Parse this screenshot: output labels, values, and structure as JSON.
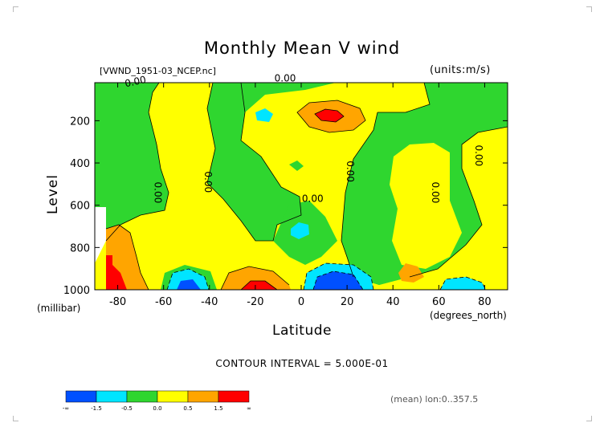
{
  "title": "Monthly Mean V wind",
  "file_label": "[VWND_1951-03_NCEP.nc]",
  "units_label": "(units:m/s)",
  "axis": {
    "ylabel": "Level",
    "yunit": "(millibar)",
    "xlabel": "Latitude",
    "xunit": "(degrees_north)"
  },
  "contour_interval": "CONTOUR INTERVAL = 5.000E-01",
  "stats_label": "(mean) lon:0..357.5",
  "colors": {
    "blue": "#0050ff",
    "cyan": "#00e5ff",
    "green": "#2fd62f",
    "yellow": "#ffff00",
    "orange": "#ffa500",
    "red": "#ff0000"
  },
  "chart_data": {
    "type": "contour",
    "title": "Monthly Mean V wind",
    "xlabel": "Latitude",
    "ylabel": "Level",
    "xlim": [
      -90,
      90
    ],
    "ylim": [
      1000,
      20
    ],
    "x_ticks": [
      -80,
      -60,
      -40,
      -20,
      0,
      20,
      40,
      60,
      80
    ],
    "y_ticks": [
      200,
      400,
      600,
      800,
      1000
    ],
    "contour_interval": 0.5,
    "contour_labels": [
      {
        "text": "0.00",
        "lat": -72,
        "level": 30
      },
      {
        "text": "0.00",
        "lat": -7,
        "level": 15
      },
      {
        "text": "0.00",
        "lat": -64,
        "level": 540
      },
      {
        "text": "0.00",
        "lat": -42,
        "level": 490
      },
      {
        "text": "0.00",
        "lat": 5,
        "level": 585
      },
      {
        "text": "0.00",
        "lat": 20,
        "level": 440
      },
      {
        "text": "0.00",
        "lat": 57,
        "level": 540
      },
      {
        "text": "0.00",
        "lat": 76,
        "level": 365
      }
    ],
    "colorbar": {
      "labels": [
        "-∞",
        "-1.5",
        "-0.5",
        "0.0",
        "0.5",
        "1.5",
        "∞"
      ],
      "colors": [
        "#0050ff",
        "#00e5ff",
        "#2fd62f",
        "#ffff00",
        "#ffa500",
        "#ff0000"
      ]
    }
  }
}
